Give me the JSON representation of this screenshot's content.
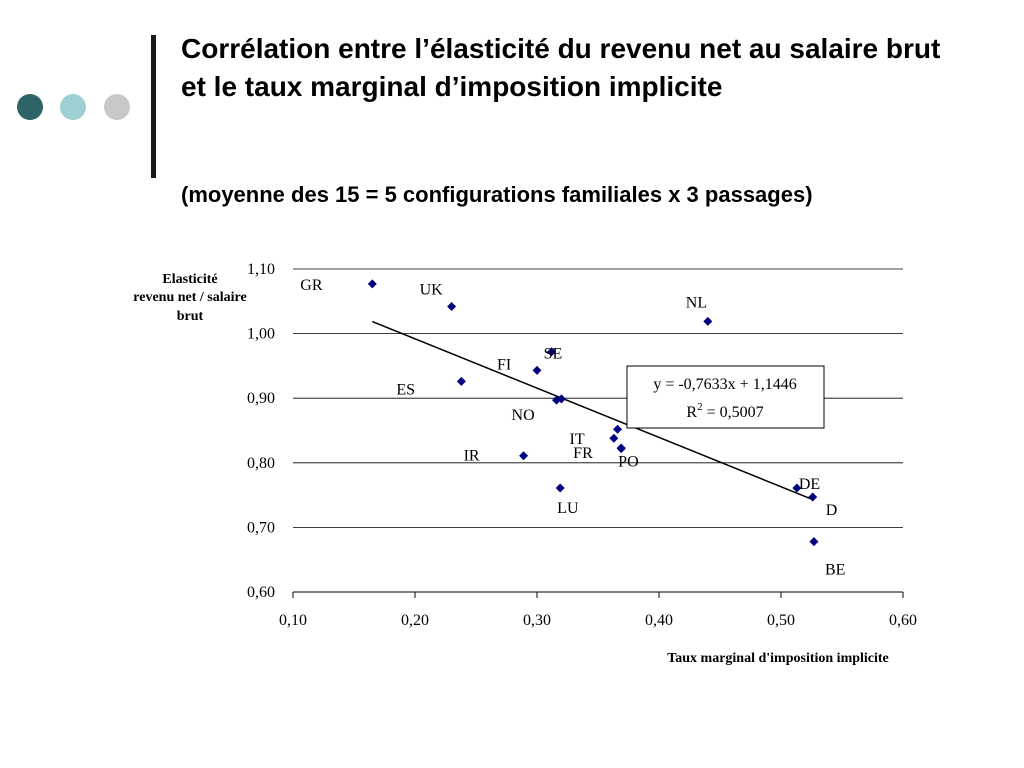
{
  "slide": {
    "title": "Corrélation entre l’élasticité du revenu net au salaire brut et le taux marginal d’imposition implicite",
    "subtitle": "(moyenne des 15 = 5 configurations familiales x  3 passages)",
    "decor_colors": [
      "#2E6466",
      "#9ECFD2",
      "#C8C8C8"
    ],
    "bar_color": "#1a1a1a"
  },
  "chart_data": {
    "type": "scatter",
    "title": "",
    "ylabel_lines": [
      "Elasticité",
      "revenu net / salaire",
      "brut"
    ],
    "xlabel": "Taux marginal d'imposition implicite",
    "xlim": [
      0.1,
      0.6
    ],
    "ylim": [
      0.6,
      1.1
    ],
    "x_ticks": [
      "0,10",
      "0,20",
      "0,30",
      "0,40",
      "0,50",
      "0,60"
    ],
    "y_ticks": [
      "0,60",
      "0,70",
      "0,80",
      "0,90",
      "1,00",
      "1,10"
    ],
    "grid": "horizontal",
    "marker_color": "#000080",
    "points": [
      {
        "label": "GR",
        "x": 0.165,
        "y": 1.077
      },
      {
        "label": "UK",
        "x": 0.23,
        "y": 1.042
      },
      {
        "label": "NL",
        "x": 0.44,
        "y": 1.019
      },
      {
        "label": "SE",
        "x": 0.312,
        "y": 0.972
      },
      {
        "label": "FI",
        "x": 0.3,
        "y": 0.943
      },
      {
        "label": "ES",
        "x": 0.238,
        "y": 0.926
      },
      {
        "label": "NO",
        "x": 0.316,
        "y": 0.897
      },
      {
        "label": "",
        "x": 0.32,
        "y": 0.899
      },
      {
        "label": "IT",
        "x": 0.366,
        "y": 0.852
      },
      {
        "label": "",
        "x": 0.363,
        "y": 0.838
      },
      {
        "label": "FR",
        "x": 0.369,
        "y": 0.823
      },
      {
        "label": "PO",
        "x": 0.369,
        "y": 0.822
      },
      {
        "label": "IR",
        "x": 0.289,
        "y": 0.811
      },
      {
        "label": "LU",
        "x": 0.319,
        "y": 0.761
      },
      {
        "label": "DE",
        "x": 0.513,
        "y": 0.761
      },
      {
        "label": "D",
        "x": 0.526,
        "y": 0.747
      },
      {
        "label": "BE",
        "x": 0.527,
        "y": 0.678
      }
    ],
    "trendline": {
      "slope": -0.7633,
      "intercept": 1.1446,
      "x_range": [
        0.165,
        0.527
      ],
      "equation": "y = -0,7633x + 1,1446",
      "r2_label": "R",
      "r2_sup": "2",
      "r2_value": " = 0,5007"
    }
  }
}
